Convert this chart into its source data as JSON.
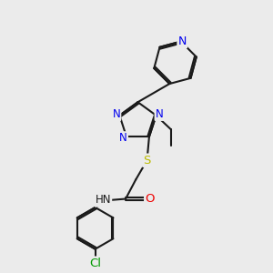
{
  "bg_color": "#ebebeb",
  "bond_color": "#1a1a1a",
  "bond_width": 1.5,
  "atom_colors": {
    "N": "#0000ee",
    "O": "#ee0000",
    "S": "#bbbb00",
    "Cl": "#009900",
    "C": "#1a1a1a",
    "H": "#555555"
  },
  "font_size": 8.5,
  "fig_bg": "#ebebeb"
}
